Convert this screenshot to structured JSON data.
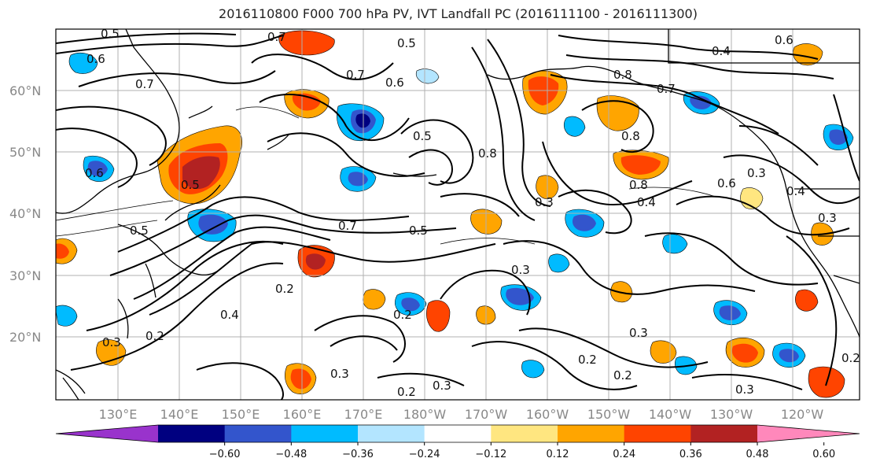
{
  "title": "2016110800 F000 700 hPa PV, IVT Landfall PC (2016111100 - 2016111300)",
  "lat_labels": [
    "60°N",
    "50°N",
    "40°N",
    "30°N",
    "20°N"
  ],
  "lon_labels": [
    "130°E",
    "140°E",
    "150°E",
    "160°E",
    "170°E",
    "180°W",
    "170°W",
    "160°W",
    "150°W",
    "140°W",
    "130°W",
    "120°W"
  ],
  "colorbar": {
    "ticks": [
      "−0.60",
      "−0.48",
      "−0.36",
      "−0.24",
      "−0.12",
      "0.12",
      "0.24",
      "0.36",
      "0.48",
      "0.60"
    ],
    "colors": [
      "#9933cc",
      "#000080",
      "#3355cc",
      "#00bbff",
      "#b3e5ff",
      "#ffffff",
      "#ffe680",
      "#ffa500",
      "#ff4400",
      "#b22222",
      "#ff88bb"
    ]
  },
  "contour_labels": [
    "0.5",
    "0.7",
    "0.6",
    "0.8",
    "0.4",
    "0.3",
    "0.2",
    "0.5",
    "0.7",
    "0.6",
    "0.8",
    "0.4",
    "0.3",
    "0.2",
    "0.3",
    "0.4",
    "0.2",
    "0.6",
    "0.3",
    "0.2"
  ],
  "colors": {
    "coast": "#000000",
    "grid": "#b0b0b0",
    "contour": "#000000"
  }
}
